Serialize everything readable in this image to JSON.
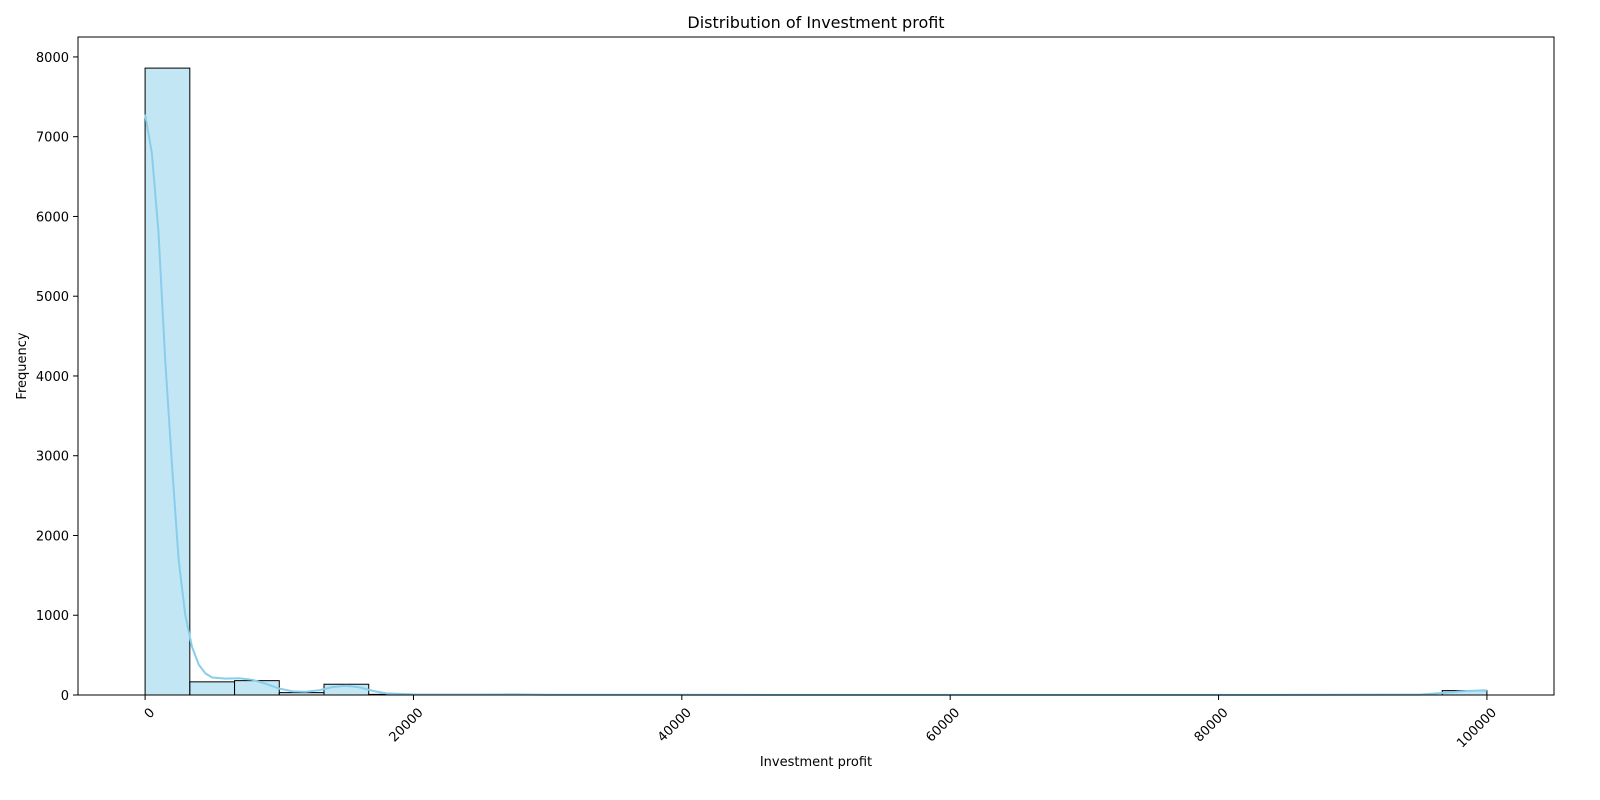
{
  "chart_data": {
    "type": "bar",
    "title": "Distribution of Investment profit",
    "xlabel": "Investment profit",
    "ylabel": "Frequency",
    "xlim": [
      -5000,
      104999
    ],
    "ylim": [
      0,
      8250
    ],
    "x_ticks": [
      0,
      20000,
      40000,
      60000,
      80000,
      100000
    ],
    "x_tick_labels": [
      "0",
      "20000",
      "40000",
      "60000",
      "80000",
      "100000"
    ],
    "y_ticks": [
      0,
      1000,
      2000,
      3000,
      4000,
      5000,
      6000,
      7000,
      8000
    ],
    "y_tick_labels": [
      "0",
      "1000",
      "2000",
      "3000",
      "4000",
      "5000",
      "6000",
      "7000",
      "8000"
    ],
    "bin_width": 3333.3,
    "bins": [
      {
        "start": 0,
        "count": 7860
      },
      {
        "start": 3333.3,
        "count": 165
      },
      {
        "start": 6666.6,
        "count": 180
      },
      {
        "start": 9999.9,
        "count": 30
      },
      {
        "start": 13333.2,
        "count": 135
      },
      {
        "start": 16666.5,
        "count": 8
      },
      {
        "start": 19999.8,
        "count": 3
      },
      {
        "start": 23333.1,
        "count": 2
      },
      {
        "start": 26666.4,
        "count": 2
      },
      {
        "start": 29999.7,
        "count": 1
      },
      {
        "start": 33333.0,
        "count": 0
      },
      {
        "start": 36666.3,
        "count": 0
      },
      {
        "start": 39999.6,
        "count": 0
      },
      {
        "start": 43332.9,
        "count": 0
      },
      {
        "start": 46666.2,
        "count": 0
      },
      {
        "start": 49999.5,
        "count": 0
      },
      {
        "start": 53332.8,
        "count": 0
      },
      {
        "start": 56666.1,
        "count": 0
      },
      {
        "start": 59999.4,
        "count": 0
      },
      {
        "start": 63332.7,
        "count": 0
      },
      {
        "start": 66666.0,
        "count": 0
      },
      {
        "start": 69999.3,
        "count": 0
      },
      {
        "start": 73332.6,
        "count": 0
      },
      {
        "start": 76665.9,
        "count": 0
      },
      {
        "start": 79999.2,
        "count": 0
      },
      {
        "start": 83332.5,
        "count": 0
      },
      {
        "start": 86665.8,
        "count": 0
      },
      {
        "start": 89999.1,
        "count": 0
      },
      {
        "start": 93332.4,
        "count": 0
      },
      {
        "start": 96665.7,
        "count": 55
      }
    ],
    "kde": {
      "x": [
        0,
        500,
        1000,
        1500,
        2000,
        2500,
        3000,
        3500,
        4000,
        4500,
        5000,
        6000,
        7000,
        8000,
        9000,
        10000,
        11000,
        12000,
        13000,
        14000,
        15000,
        16000,
        17000,
        18000,
        20000,
        25000,
        28000,
        30000,
        40000,
        60000,
        80000,
        95000,
        97000,
        98500,
        99999
      ],
      "y": [
        7280,
        6800,
        5800,
        4200,
        2900,
        1700,
        1000,
        600,
        380,
        270,
        220,
        205,
        210,
        190,
        140,
        80,
        45,
        40,
        60,
        100,
        115,
        95,
        50,
        20,
        8,
        6,
        8,
        4,
        2,
        1,
        1,
        5,
        30,
        50,
        60
      ]
    },
    "colors": {
      "bar_fill": "#87ceeb",
      "bar_fill_opacity": 0.5,
      "bar_edge": "#000000",
      "kde_line": "#87ceeb"
    },
    "grid": false,
    "legend": "none"
  }
}
